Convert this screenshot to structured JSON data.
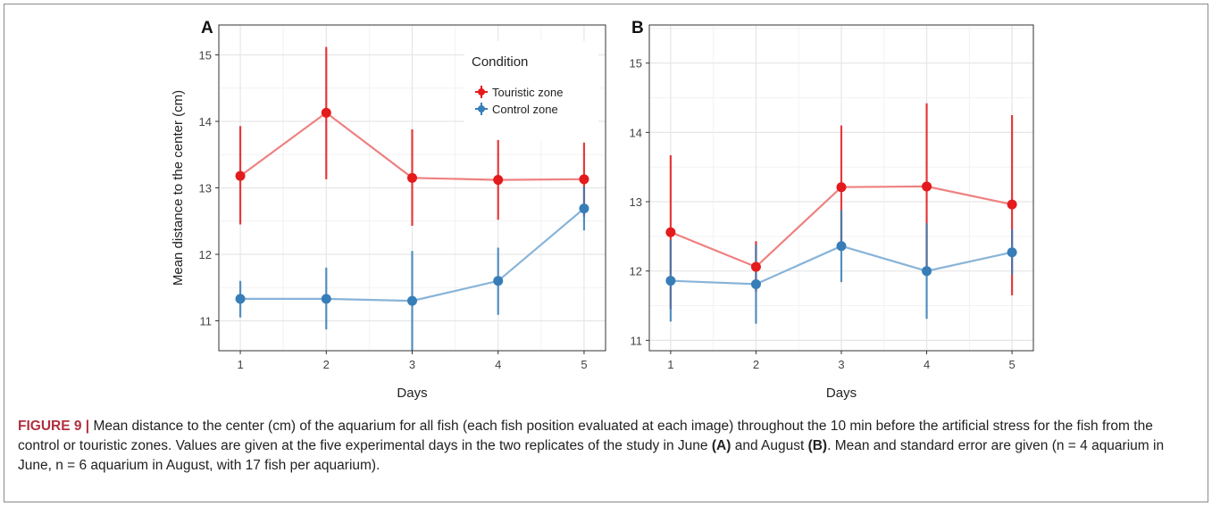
{
  "figure": {
    "label": "FIGURE 9 |",
    "caption_text": " Mean distance to the center (cm) of the aquarium for all fish (each fish position evaluated at each image) throughout the 10 min before the artificial stress for the fish from the control or touristic zones. Values are given at the five experimental days in the two replicates of the study in June ",
    "caption_a": "(A)",
    "caption_mid": " and August ",
    "caption_b": "(B)",
    "caption_end": ". Mean and standard error are given (n = 4 aquarium in June, n = 6 aquarium in August, with 17 fish per aquarium)."
  },
  "colors": {
    "touristic": "#e41a1c",
    "control": "#377eb8"
  },
  "chart_data": [
    {
      "type": "line",
      "panel_label": "A",
      "xlabel": "Days",
      "ylabel": "Mean distance to the center (cm)",
      "x": [
        1,
        2,
        3,
        4,
        5
      ],
      "xlim": [
        0.75,
        5.25
      ],
      "ylim": [
        10.55,
        15.45
      ],
      "yticks": [
        11,
        12,
        13,
        14,
        15
      ],
      "grid": true,
      "legend": {
        "title": "Condition",
        "position": "top-right"
      },
      "series": [
        {
          "name": "Touristic zone",
          "mean": [
            13.18,
            14.13,
            13.15,
            13.12,
            13.13
          ],
          "lower": [
            12.45,
            13.13,
            12.43,
            12.52,
            12.57
          ],
          "upper": [
            13.93,
            15.12,
            13.88,
            13.72,
            13.68
          ]
        },
        {
          "name": "Control zone",
          "mean": [
            11.33,
            11.33,
            11.3,
            11.6,
            12.69
          ],
          "lower": [
            11.05,
            10.87,
            10.55,
            11.09,
            12.36
          ],
          "upper": [
            11.6,
            11.8,
            12.05,
            12.1,
            13.02
          ]
        }
      ]
    },
    {
      "type": "line",
      "panel_label": "B",
      "xlabel": "Days",
      "ylabel": "",
      "x": [
        1,
        2,
        3,
        4,
        5
      ],
      "xlim": [
        0.75,
        5.25
      ],
      "ylim": [
        10.85,
        15.55
      ],
      "yticks": [
        11,
        12,
        13,
        14,
        15
      ],
      "grid": true,
      "series": [
        {
          "name": "Touristic zone",
          "mean": [
            12.56,
            12.06,
            13.21,
            13.22,
            12.96
          ],
          "lower": [
            11.45,
            11.7,
            12.33,
            12.02,
            11.65
          ],
          "upper": [
            13.67,
            12.43,
            14.1,
            14.42,
            14.25
          ]
        },
        {
          "name": "Control zone",
          "mean": [
            11.86,
            11.81,
            12.36,
            12.0,
            12.27
          ],
          "lower": [
            11.27,
            11.24,
            11.84,
            11.31,
            11.95
          ],
          "upper": [
            12.45,
            12.38,
            12.88,
            12.69,
            12.6
          ]
        }
      ]
    }
  ]
}
